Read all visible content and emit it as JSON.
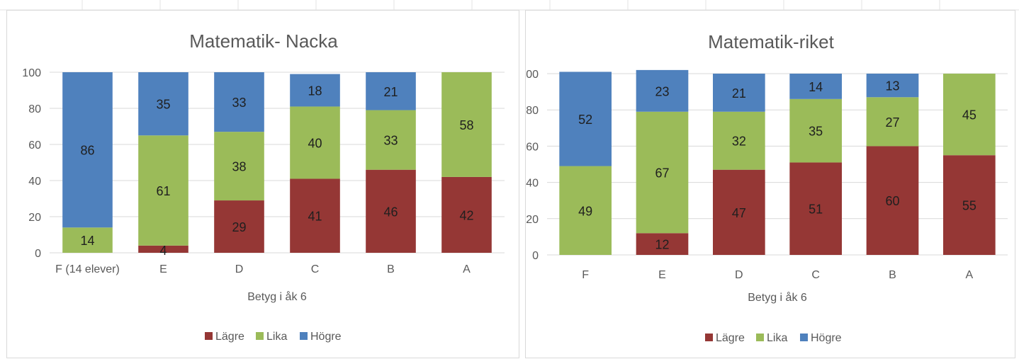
{
  "colors": {
    "lagre": "#953735",
    "lika": "#9bbb59",
    "hogre": "#4f81bd"
  },
  "chart_data": [
    {
      "type": "bar",
      "stacked": true,
      "title": "Matematik- Nacka",
      "xlabel": "Betyg i åk 6",
      "ylabel": "",
      "ylim": [
        0,
        100
      ],
      "yticks": [
        "0",
        "20",
        "40",
        "60",
        "80",
        "100"
      ],
      "categories": [
        "F (14 elever)",
        "E",
        "D",
        "C",
        "B",
        "A"
      ],
      "series": [
        {
          "name": "Lägre",
          "values": [
            0,
            4,
            29,
            41,
            46,
            42
          ],
          "labels": [
            "",
            "4",
            "29",
            "41",
            "46",
            "42"
          ]
        },
        {
          "name": "Lika",
          "values": [
            14,
            61,
            38,
            40,
            33,
            58
          ],
          "labels": [
            "14",
            "61",
            "38",
            "40",
            "33",
            "58"
          ]
        },
        {
          "name": "Högre",
          "values": [
            86,
            35,
            33,
            18,
            21,
            0
          ],
          "labels": [
            "86",
            "35",
            "33",
            "18",
            "21",
            ""
          ]
        }
      ],
      "legend_position": "bottom",
      "grid": true
    },
    {
      "type": "bar",
      "stacked": true,
      "title": "Matematik-riket",
      "xlabel": "Betyg i åk 6",
      "ylabel": "",
      "ylim": [
        0,
        100
      ],
      "yticks": [
        "0",
        "20",
        "40",
        "60",
        "80",
        "100"
      ],
      "categories": [
        "F",
        "E",
        "D",
        "C",
        "B",
        "A"
      ],
      "series": [
        {
          "name": "Lägre",
          "values": [
            0,
            12,
            47,
            51,
            60,
            55
          ],
          "labels": [
            "",
            "12",
            "47",
            "51",
            "60",
            "55"
          ]
        },
        {
          "name": "Lika",
          "values": [
            49,
            67,
            32,
            35,
            27,
            45
          ],
          "labels": [
            "49",
            "67",
            "32",
            "35",
            "27",
            "45"
          ]
        },
        {
          "name": "Högre",
          "values": [
            52,
            23,
            21,
            14,
            13,
            0
          ],
          "labels": [
            "52",
            "23",
            "21",
            "14",
            "13",
            ""
          ]
        }
      ],
      "legend_position": "bottom",
      "grid": true
    }
  ]
}
